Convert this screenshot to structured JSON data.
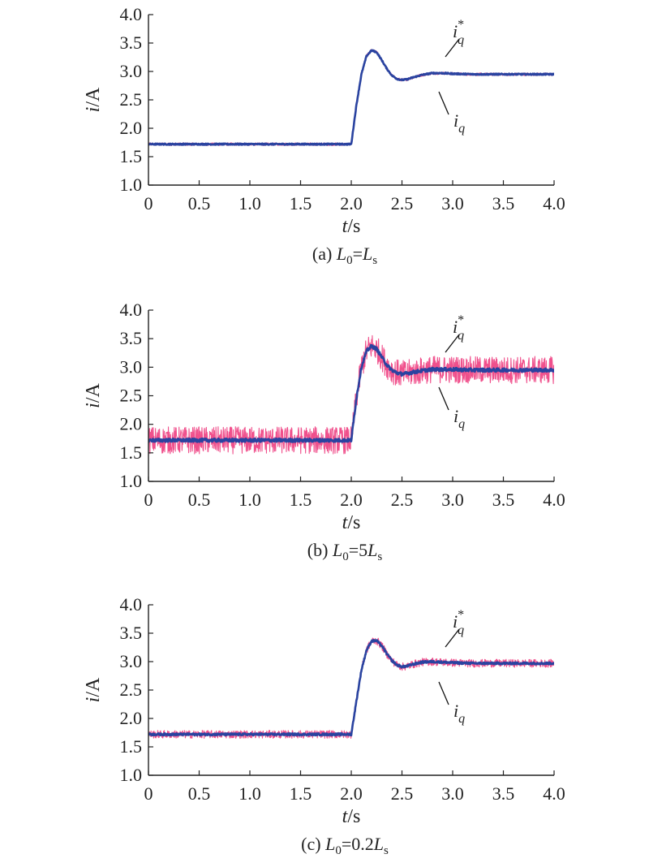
{
  "chart_data": [
    {
      "type": "line",
      "caption": {
        "prefix": "(a) ",
        "a": "L",
        "a_sub": "0",
        "eq": "=",
        "b": "L",
        "b_sub": "s"
      },
      "xlabel": {
        "var": "t",
        "unit": "/s"
      },
      "ylabel": {
        "var": "i",
        "unit": "/A"
      },
      "xlim": [
        0,
        4.0
      ],
      "ylim": [
        1.0,
        4.0
      ],
      "xticks": [
        "0",
        "0.5",
        "1.0",
        "1.5",
        "2.0",
        "2.5",
        "3.0",
        "3.5",
        "4.0"
      ],
      "yticks": [
        "1.0",
        "1.5",
        "2.0",
        "2.5",
        "3.0",
        "3.5",
        "4.0"
      ],
      "step": {
        "t": 2.0,
        "initial": 1.72,
        "final": 2.95
      },
      "response": {
        "t": [
          0,
          2.0,
          2.05,
          2.1,
          2.15,
          2.2,
          2.25,
          2.3,
          2.35,
          2.4,
          2.45,
          2.5,
          2.55,
          2.6,
          2.7,
          2.8,
          2.9,
          3.0,
          3.2,
          3.5,
          4.0
        ],
        "y": [
          1.72,
          1.72,
          2.4,
          2.95,
          3.27,
          3.37,
          3.34,
          3.2,
          3.05,
          2.93,
          2.87,
          2.85,
          2.86,
          2.89,
          2.94,
          2.97,
          2.97,
          2.96,
          2.95,
          2.95,
          2.95
        ]
      },
      "series": [
        {
          "name": "i_q^*",
          "label": {
            "base": "i",
            "sub": "q",
            "sup": "*"
          },
          "noise_amplitude": 0.025,
          "color": "#f0508c"
        },
        {
          "name": "i_q",
          "label": {
            "base": "i",
            "sub": "q",
            "sup": ""
          },
          "noise_amplitude": 0.012,
          "color": "#2a43a0"
        }
      ]
    },
    {
      "type": "line",
      "caption": {
        "prefix": "(b) ",
        "a": "L",
        "a_sub": "0",
        "eq": "=5",
        "b": "L",
        "b_sub": "s"
      },
      "xlabel": {
        "var": "t",
        "unit": "/s"
      },
      "ylabel": {
        "var": "i",
        "unit": "/A"
      },
      "xlim": [
        0,
        4.0
      ],
      "ylim": [
        1.0,
        4.0
      ],
      "xticks": [
        "0",
        "0.5",
        "1.0",
        "1.5",
        "2.0",
        "2.5",
        "3.0",
        "3.5",
        "4.0"
      ],
      "yticks": [
        "1.0",
        "1.5",
        "2.0",
        "2.5",
        "3.0",
        "3.5",
        "4.0"
      ],
      "step": {
        "t": 2.0,
        "initial": 1.72,
        "final": 2.95
      },
      "response": {
        "t": [
          0,
          2.0,
          2.05,
          2.1,
          2.15,
          2.2,
          2.25,
          2.3,
          2.35,
          2.4,
          2.45,
          2.5,
          2.55,
          2.6,
          2.7,
          2.8,
          2.9,
          3.0,
          3.2,
          3.5,
          4.0
        ],
        "y": [
          1.72,
          1.72,
          2.45,
          3.0,
          3.28,
          3.37,
          3.32,
          3.18,
          3.04,
          2.95,
          2.9,
          2.88,
          2.89,
          2.91,
          2.94,
          2.96,
          2.96,
          2.96,
          2.95,
          2.95,
          2.95
        ]
      },
      "series": [
        {
          "name": "i_q^*",
          "label": {
            "base": "i",
            "sub": "q",
            "sup": "*"
          },
          "noise_amplitude": 0.24,
          "color": "#f0508c"
        },
        {
          "name": "i_q",
          "label": {
            "base": "i",
            "sub": "q",
            "sup": ""
          },
          "noise_amplitude": 0.03,
          "color": "#2a43a0"
        }
      ]
    },
    {
      "type": "line",
      "caption": {
        "prefix": "(c) ",
        "a": "L",
        "a_sub": "0",
        "eq": "=0.2",
        "b": "L",
        "b_sub": "s"
      },
      "xlabel": {
        "var": "t",
        "unit": "/s"
      },
      "ylabel": {
        "var": "i",
        "unit": "/A"
      },
      "xlim": [
        0,
        4.0
      ],
      "ylim": [
        1.0,
        4.0
      ],
      "xticks": [
        "0",
        "0.5",
        "1.0",
        "1.5",
        "2.0",
        "2.5",
        "3.0",
        "3.5",
        "4.0"
      ],
      "yticks": [
        "1.0",
        "1.5",
        "2.0",
        "2.5",
        "3.0",
        "3.5",
        "4.0"
      ],
      "step": {
        "t": 2.0,
        "initial": 1.72,
        "final": 2.97
      },
      "response": {
        "t": [
          0,
          2.0,
          2.05,
          2.1,
          2.15,
          2.2,
          2.25,
          2.3,
          2.35,
          2.4,
          2.45,
          2.5,
          2.55,
          2.6,
          2.7,
          2.8,
          2.9,
          3.0,
          3.2,
          3.5,
          4.0
        ],
        "y": [
          1.72,
          1.72,
          2.3,
          2.85,
          3.2,
          3.36,
          3.37,
          3.28,
          3.14,
          3.02,
          2.94,
          2.91,
          2.92,
          2.95,
          2.99,
          3.0,
          2.99,
          2.98,
          2.97,
          2.97,
          2.97
        ]
      },
      "series": [
        {
          "name": "i_q^*",
          "label": {
            "base": "i",
            "sub": "q",
            "sup": "*"
          },
          "noise_amplitude": 0.07,
          "color": "#f0508c"
        },
        {
          "name": "i_q",
          "label": {
            "base": "i",
            "sub": "q",
            "sup": ""
          },
          "noise_amplitude": 0.018,
          "color": "#2a43a0"
        }
      ]
    }
  ]
}
